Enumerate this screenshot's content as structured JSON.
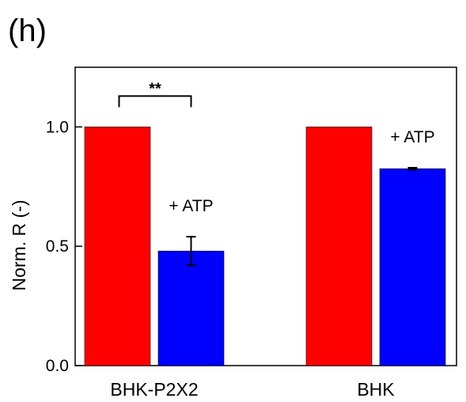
{
  "panel_label": "(h)",
  "chart_data": {
    "type": "bar",
    "ylabel": "Norm. R (-)",
    "xlabel": "",
    "ylim": [
      0.0,
      1.25
    ],
    "yticks": [
      0.0,
      0.5,
      1.0
    ],
    "ytick_labels": [
      "0.0",
      "0.5",
      "1.0"
    ],
    "categories": [
      "BHK-P2X2",
      "BHK"
    ],
    "grid": false,
    "series": [
      {
        "color": "#ff0000",
        "values": [
          1.0,
          1.0
        ],
        "errors": [
          0,
          0
        ]
      },
      {
        "color": "#0000ff",
        "values": [
          0.48,
          0.825
        ],
        "errors": [
          0.06,
          0.004
        ]
      }
    ],
    "annotations": [
      {
        "category": 0,
        "text": "+ ATP"
      },
      {
        "category": 1,
        "text": "+ ATP"
      }
    ],
    "significance": {
      "category": 0,
      "text": "**"
    }
  }
}
